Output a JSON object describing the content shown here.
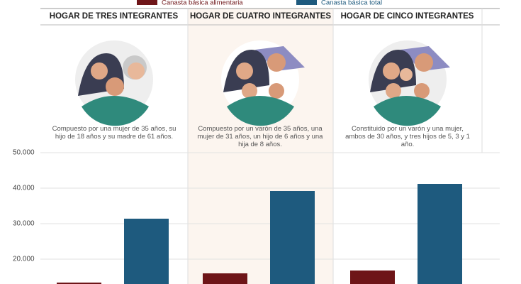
{
  "chart_data": {
    "type": "bar",
    "categories": [
      "HOGAR DE TRES INTEGRANTES",
      "HOGAR DE CUATRO INTEGRANTES",
      "HOGAR DE CINCO INTEGRANTES"
    ],
    "descriptions": [
      "Compuesto por una mujer de 35 años, su hijo de 18 años y su madre de 61 años.",
      "Compuesto por un varón de 35 años, una mujer de 31 años, un hijo de 6 años y una hija de 8 años.",
      "Constituido por un varón y una mujer, ambos de 30 años, y tres hijos de 5, 3 y 1 año."
    ],
    "series": [
      {
        "name": "Canasta básica alimentaria",
        "color": "#6e1518",
        "values": [
          13400,
          16000,
          16800
        ]
      },
      {
        "name": "Canasta básica total",
        "color": "#1e5a7e",
        "values": [
          31400,
          39200,
          41200
        ]
      }
    ],
    "ylim": [
      13000,
      50000
    ],
    "yticks": [
      {
        "value": 20000,
        "label": "20.000"
      },
      {
        "value": 30000,
        "label": "30.000"
      },
      {
        "value": 40000,
        "label": "40.000"
      },
      {
        "value": 50000,
        "label": "50.000"
      }
    ],
    "grid": true
  }
}
